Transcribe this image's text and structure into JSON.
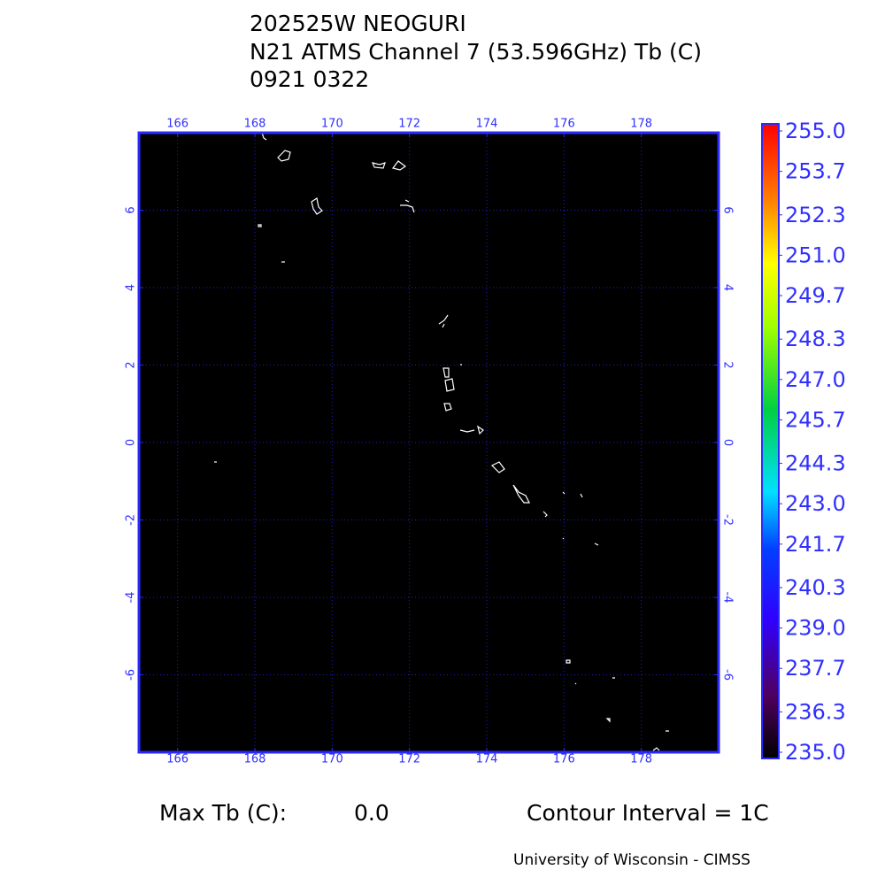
{
  "header": {
    "title_lines": [
      "202525W NEOGURI",
      "N21 ATMS Channel 7 (53.596GHz) Tb (C)",
      "0921 0322"
    ]
  },
  "map": {
    "xlim": [
      165,
      180
    ],
    "ylim": [
      -8,
      8
    ],
    "xticks": [
      166,
      168,
      170,
      172,
      174,
      176,
      178
    ],
    "yticks": [
      6,
      4,
      2,
      0,
      -2,
      -4,
      -6
    ],
    "grid": true
  },
  "colorbar": {
    "range": [
      235,
      255
    ],
    "ticks": [
      {
        "value": 255,
        "label": "255.0"
      },
      253.7,
      252.3,
      {
        "value": 251,
        "label": "251.0"
      },
      249.7,
      248.3,
      {
        "value": 247,
        "label": "247.0"
      },
      245.7,
      244.3,
      {
        "value": 243,
        "label": "243.0"
      },
      241.7,
      240.3,
      {
        "value": 239,
        "label": "239.0"
      },
      237.7,
      236.3,
      {
        "value": 235,
        "label": "235.0"
      }
    ]
  },
  "footer": {
    "max_label": "Max Tb (C):",
    "max_value": "0.0",
    "contour": "Contour Interval = 1C",
    "credit": "University of Wisconsin - CIMSS"
  }
}
